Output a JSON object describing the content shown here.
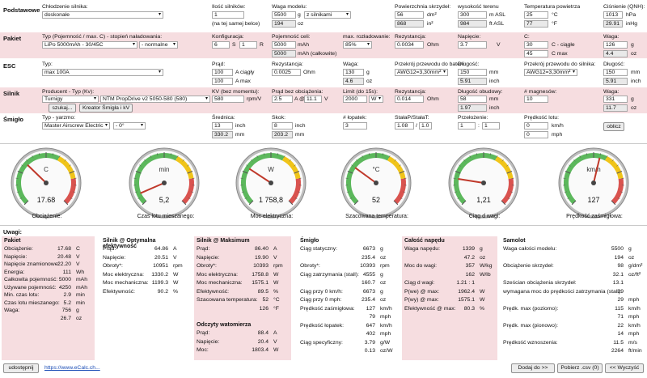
{
  "base": {
    "section": "Podstawowe",
    "cooling_label": "Chłodzenie silnika:",
    "cooling_val": "doskonałe",
    "motors_label": "Ilość silników:",
    "motors_val": "1",
    "motors_note": "(na tej samej belce)",
    "weight_label": "Waga modelu:",
    "weight_val": "5500",
    "weight_unit": "g",
    "weight_oz": "194",
    "weight_oz_unit": "oz",
    "weight_mode": "z silnikami",
    "wing_label": "Powierzchnia skrzydeł:",
    "wing_val": "56",
    "wing_unit": "dm²",
    "wing_val2": "868",
    "wing_unit2": "in²",
    "alt_label": "wysokość terenu",
    "alt_val": "300",
    "alt_unit": "m ASL",
    "alt_val2": "984",
    "alt_unit2": "ft ASL",
    "temp_label": "Temperatura powietrza",
    "temp_val": "25",
    "temp_unit": "°C",
    "temp_val2": "77",
    "temp_unit2": "°F",
    "press_label": "Ciśnienie (QNH):",
    "press_val": "1013",
    "press_unit": "hPa",
    "press_val2": "29.91",
    "press_unit2": "inHg"
  },
  "pack": {
    "section": "Pakiet",
    "type_label": "Typ (Pojemność / max. C) - stopień naładowania:",
    "type_val": "LiPo 5000mAh - 30/45C",
    "charge_val": "- normalne",
    "config_label": "Konfiguracja:",
    "config_s": "6",
    "config_s_unit": "S",
    "config_p": "1",
    "config_p_unit": "R",
    "cap_label": "Pojemność celi:",
    "cap_val": "5000",
    "cap_unit": "mAh",
    "cap_total": "5000",
    "cap_total_unit": "mAh (całkowite)",
    "maxdis_label": "max. rozładowanie:",
    "maxdis_val": "85%",
    "res_label": "Rezystancja:",
    "res_val": "0.0034",
    "res_unit": "Ohm",
    "volt_label": "Napięcie:",
    "volt_val": "3.7",
    "volt_unit": "V",
    "c_label": "C:",
    "c_cont": "30",
    "c_cont_unit": "C - ciągłe",
    "c_max": "45",
    "c_max_unit": "C max",
    "w_label": "Waga:",
    "w_val": "126",
    "w_unit": "g",
    "w_oz": "4.4",
    "w_oz_unit": "oz"
  },
  "esc": {
    "section": "ESC",
    "type_label": "Typ:",
    "type_val": "max 100A",
    "curr_label": "Prąd:",
    "curr_cont": "100",
    "curr_cont_unit": "A ciągły",
    "curr_max": "100",
    "curr_max_unit": "A max",
    "res_label": "Rezystancja:",
    "res_val": "0.0025",
    "res_unit": "Ohm",
    "w_label": "Waga:",
    "w_val": "130",
    "w_unit": "g",
    "w_oz": "4.6",
    "w_oz_unit": "oz",
    "wire_bat_label": "Przekrój przewodu do baterii:",
    "wire_bat_val": "AWG12=3,30mm²",
    "len_label": "Długość:",
    "len_val": "150",
    "len_unit": "mm",
    "len_in": "5.91",
    "len_in_unit": "inch",
    "wire_mot_label": "Przekrój przewodu do silnika:",
    "wire_mot_val": "AWG12=3,30mm²",
    "len2_label": "Długość:",
    "len2_val": "150",
    "len2_unit": "mm",
    "len2_in": "5.91",
    "len2_in_unit": "inch"
  },
  "motor": {
    "section": "Silnik",
    "prod_label": "Producent - Typ (Kv):",
    "prod_val": "Turnigy",
    "type_val": "NTM PropDrive v2 5050-580 (580)",
    "search_btn": "szukaj...",
    "wizard_btn": "Kreator Śmigła i kV",
    "kv_label": "KV (bez momentu):",
    "kv_val": "580",
    "kv_unit": "rpm/V",
    "idle_label": "Prąd bez obciążenia:",
    "idle_val": "2.5",
    "idle_at": "A @",
    "idle_v": "11.1",
    "idle_v_unit": "V",
    "limit_label": "Limit (do 15s):",
    "limit_val": "2000",
    "limit_unit": "W",
    "res_label": "Rezystancja:",
    "res_val": "0.014",
    "res_unit": "Ohm",
    "case_label": "Długość obudowy:",
    "case_val": "58",
    "case_unit": "mm",
    "case_in": "1.97",
    "case_in_unit": "inch",
    "mag_label": "# magnesów:",
    "mag_val": "10",
    "w_label": "Waga:",
    "w_val": "331",
    "w_unit": "g",
    "w_oz": "11.7",
    "w_oz_unit": "oz"
  },
  "prop": {
    "section": "Śmigło",
    "type_label": "Typ - yarzmo:",
    "type_val": "Master Airscrew Electric",
    "yoke_val": "- 0°",
    "diam_label": "Średnica:",
    "diam_val": "13",
    "diam_unit": "inch",
    "diam_mm": "330.2",
    "diam_mm_unit": "mm",
    "pitch_label": "Skok:",
    "pitch_val": "8",
    "pitch_unit": "inch",
    "pitch_mm": "203.2",
    "pitch_mm_unit": "mm",
    "blades_label": "# łopatek:",
    "blades_val": "3",
    "const_label": "StałaP/StałaT:",
    "const_p": "1.08",
    "const_t": "1.0",
    "gear_label": "Przełożenie:",
    "gear_a": "1",
    "gear_sep": ":",
    "gear_b": "1",
    "speed_label": "Prędkość lotu:",
    "speed_kmh": "0",
    "speed_kmh_unit": "km/h",
    "speed_mph": "0",
    "speed_mph_unit": "mph",
    "calc_btn": "oblicz"
  },
  "gauges": [
    {
      "label": "Obciążenie:",
      "unit": "C",
      "value": "17.68",
      "fraction": 0.33
    },
    {
      "label": "Czas lotu mieszanego:",
      "unit": "min",
      "value": "5,2",
      "fraction": 0.08
    },
    {
      "label": "Moc elektryczna:",
      "unit": "W",
      "value": "1 758,8",
      "fraction": 0.29
    },
    {
      "label": "Szacowana temperatura:",
      "unit": "°C",
      "value": "52",
      "fraction": 0.3
    },
    {
      "label": "Ciąg d wagi:",
      "unit": "",
      "value": "1,21",
      "fraction": 0.2
    },
    {
      "label": "Prędkość zaśmigłowa:",
      "unit": "km/h",
      "value": "127",
      "fraction": 0.55
    }
  ],
  "notes": {
    "title": "Uwagi:"
  },
  "results": {
    "pack": {
      "title": "Pakiet",
      "rows": [
        [
          "Obciążenie:",
          "17.68",
          "C"
        ],
        [
          "Napięcie:",
          "20.48",
          "V"
        ],
        [
          "Napięcie znamionowe:",
          "22.20",
          "V"
        ],
        [
          "Energia:",
          "111",
          "Wh"
        ],
        [
          "Całkowita pojemność:",
          "5000",
          "mAh"
        ],
        [
          "Używane pojemność:",
          "4250",
          "mAh"
        ],
        [
          "Min. czas lotu:",
          "2.9",
          "min"
        ],
        [
          "Czas lotu mieszanego:",
          "5.2",
          "min"
        ],
        [
          "Waga:",
          "756",
          "g"
        ],
        [
          "",
          "26.7",
          "oz"
        ]
      ]
    },
    "motor_opt": {
      "title": "Silnik @ Optymalna efektywność",
      "rows": [
        [
          "Prąd:",
          "64.86",
          "A"
        ],
        [
          "Napięcie:",
          "20.51",
          "V"
        ],
        [
          "Obroty*:",
          "10951",
          "rpm"
        ],
        [
          "Moc elektryczna:",
          "1330.2",
          "W"
        ],
        [
          "Moc mechaniczna:",
          "1199.3",
          "W"
        ],
        [
          "Efektywność:",
          "90.2",
          "%"
        ]
      ]
    },
    "motor_max": {
      "title": "Silnik @ Maksimum",
      "rows": [
        [
          "Prąd:",
          "86.40",
          "A"
        ],
        [
          "Napięcie:",
          "19.90",
          "V"
        ],
        [
          "Obroty*:",
          "10393",
          "rpm"
        ],
        [
          "Moc elektryczna:",
          "1758.8",
          "W"
        ],
        [
          "Moc mechaniczna:",
          "1575.1",
          "W"
        ],
        [
          "Efektywność:",
          "89.5",
          "%"
        ],
        [
          "Szacowana temperatura:",
          "52",
          "°C"
        ],
        [
          "",
          "126",
          "°F"
        ]
      ]
    },
    "idle": {
      "title": "Odczyty watomierza",
      "rows": [
        [
          "Prąd:",
          "88.4",
          "A"
        ],
        [
          "Napięcie:",
          "20.4",
          "V"
        ],
        [
          "Moc:",
          "1803.4",
          "W"
        ]
      ]
    },
    "prop": {
      "title": "Śmigło",
      "rows": [
        [
          "Ciąg statyczny:",
          "6673",
          "g"
        ],
        [
          "",
          "235.4",
          "oz"
        ],
        [
          "Obroty*:",
          "10393",
          "rpm"
        ],
        [
          "Ciąg zatrzymania (stall):",
          "4555",
          "g"
        ],
        [
          "",
          "160.7",
          "oz"
        ],
        [
          "Ciąg przy 0 km/h:",
          "6673",
          "g"
        ],
        [
          "Ciąg przy 0 mph:",
          "235.4",
          "oz"
        ],
        [
          "Prędkość zaśmigłowa:",
          "127",
          "km/h"
        ],
        [
          "",
          "79",
          "mph"
        ],
        [
          "Prędkość łopatek:",
          "647",
          "km/h"
        ],
        [
          "",
          "402",
          "mph"
        ],
        [
          "Ciąg specyficzny:",
          "3.79",
          "g/W"
        ],
        [
          "",
          "0.13",
          "oz/W"
        ]
      ]
    },
    "drive": {
      "title": "Całość napędu",
      "rows": [
        [
          "Waga napędu:",
          "1339",
          "g"
        ],
        [
          "",
          "47.2",
          "oz"
        ],
        [
          "Moc do wagi:",
          "357",
          "W/kg"
        ],
        [
          "",
          "162",
          "W/lb"
        ],
        [
          "Ciąg d wagi:",
          "1.21 : 1",
          ""
        ],
        [
          "P(we) @ max:",
          "1962.4",
          "W"
        ],
        [
          "P(wy) @ max:",
          "1575.1",
          "W"
        ],
        [
          "Efektywność @ max:",
          "80.3",
          "%"
        ]
      ]
    },
    "plane": {
      "title": "Samolot",
      "rows": [
        [
          "Waga całości modelu:",
          "5500",
          "g"
        ],
        [
          "",
          "194",
          "oz"
        ],
        [
          "Obciążenie skrzydeł:",
          "98",
          "g/dm²"
        ],
        [
          "",
          "32.1",
          "oz/ft²"
        ],
        [
          "Sześcian obciążenia skrzydeł:",
          "13.1",
          ""
        ],
        [
          "wymagana moc do prędkości zatrzymania (stall):",
          "29",
          ""
        ],
        [
          "",
          "29",
          "mph"
        ],
        [
          "Prędk. max (poziomo):",
          "115",
          "km/h"
        ],
        [
          "",
          "71",
          "mph"
        ],
        [
          "Prędk. max (pionowo):",
          "22",
          "km/h"
        ],
        [
          "",
          "14",
          "mph"
        ],
        [
          "Prędkość wznoszenia:",
          "11.5",
          "m/s"
        ],
        [
          "",
          "2264",
          "ft/min"
        ]
      ]
    }
  },
  "footer": {
    "share_btn": "udostępnij",
    "link": "https://www.eCalc.ch...",
    "add_btn": "Dodaj do >>",
    "csv_btn": "Pobierz .csv (0)",
    "clear_btn": "<< Wyczyść"
  },
  "colors": {
    "pink": "#f6dde0",
    "needle": "#c0392b",
    "green": "#5cb85c",
    "yellow": "#f0c419",
    "red": "#d9534f"
  }
}
